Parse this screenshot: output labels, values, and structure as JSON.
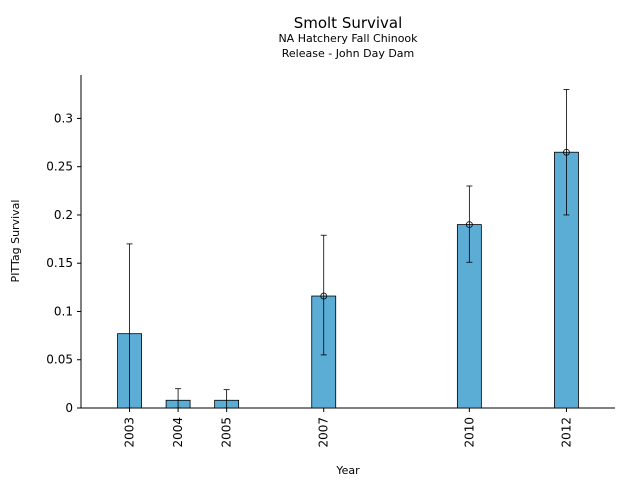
{
  "chart_data": {
    "type": "bar",
    "title": "Smolt Survival",
    "subtitle_lines": [
      "NA Hatchery Fall Chinook",
      "Release - John Day Dam"
    ],
    "xlabel": "Year",
    "ylabel": "PITTag Survival",
    "categories": [
      "2003",
      "2004",
      "2005",
      "2007",
      "2010",
      "2012"
    ],
    "x": [
      2003,
      2004,
      2005,
      2007,
      2010,
      2012
    ],
    "values": [
      0.077,
      0.008,
      0.008,
      0.116,
      0.19,
      0.265
    ],
    "error_low": [
      0.0,
      0.0,
      0.0,
      0.055,
      0.151,
      0.2
    ],
    "error_high": [
      0.17,
      0.02,
      0.019,
      0.179,
      0.23,
      0.33
    ],
    "point_markers": [
      false,
      false,
      false,
      true,
      true,
      true
    ],
    "ylim": [
      0,
      0.345
    ],
    "xlim": [
      2002,
      2013
    ],
    "yticks": [
      0,
      0.05,
      0.1,
      0.15,
      0.2,
      0.25,
      0.3
    ],
    "ytick_labels": [
      "0",
      "0.05",
      "0.1",
      "0.15",
      "0.2",
      "0.25",
      "0.3"
    ],
    "bar_color": "#5badd6",
    "grid": false,
    "legend": "none"
  }
}
